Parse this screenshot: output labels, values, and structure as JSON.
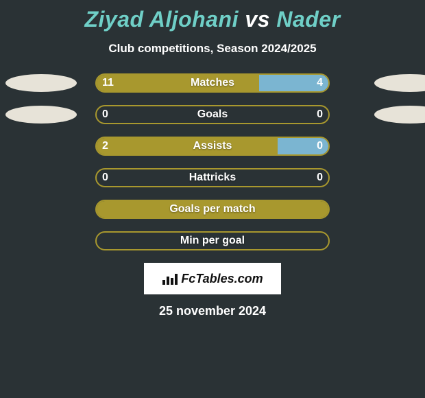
{
  "title": {
    "player1": "Ziyad Aljohani",
    "vs": "vs",
    "player2": "Nader",
    "color1": "#6fcfc7",
    "color_vs": "#ffffff",
    "color2": "#6fcfc7",
    "fontsize": 32
  },
  "subtitle": "Club competitions, Season 2024/2025",
  "chart": {
    "track_width": 342,
    "track_height": 28,
    "border_radius": 14,
    "row_gap": 18,
    "label_fontsize": 16,
    "value_fontsize": 16,
    "player1_color": "#a8982e",
    "player2_color": "#7bb5d1",
    "border_color_active": "#a8982e",
    "ellipse_color": "#e7e3d8",
    "ellipse_width": 104,
    "ellipse_height": 26,
    "background": "#2a3235",
    "rows": [
      {
        "label": "Matches",
        "left_val": "11",
        "right_val": "4",
        "left_pct": 70,
        "right_pct": 30,
        "show_ellipses": true
      },
      {
        "label": "Goals",
        "left_val": "0",
        "right_val": "0",
        "left_pct": 0,
        "right_pct": 0,
        "show_ellipses": true
      },
      {
        "label": "Assists",
        "left_val": "2",
        "right_val": "0",
        "left_pct": 78,
        "right_pct": 22,
        "show_ellipses": false
      },
      {
        "label": "Hattricks",
        "left_val": "0",
        "right_val": "0",
        "left_pct": 0,
        "right_pct": 0,
        "show_ellipses": false
      },
      {
        "label": "Goals per match",
        "left_val": "",
        "right_val": "",
        "left_pct": 100,
        "right_pct": 0,
        "show_ellipses": false
      },
      {
        "label": "Min per goal",
        "left_val": "",
        "right_val": "",
        "left_pct": 0,
        "right_pct": 0,
        "show_ellipses": false
      }
    ]
  },
  "logo": {
    "text": "FcTables.com"
  },
  "date": "25 november 2024"
}
